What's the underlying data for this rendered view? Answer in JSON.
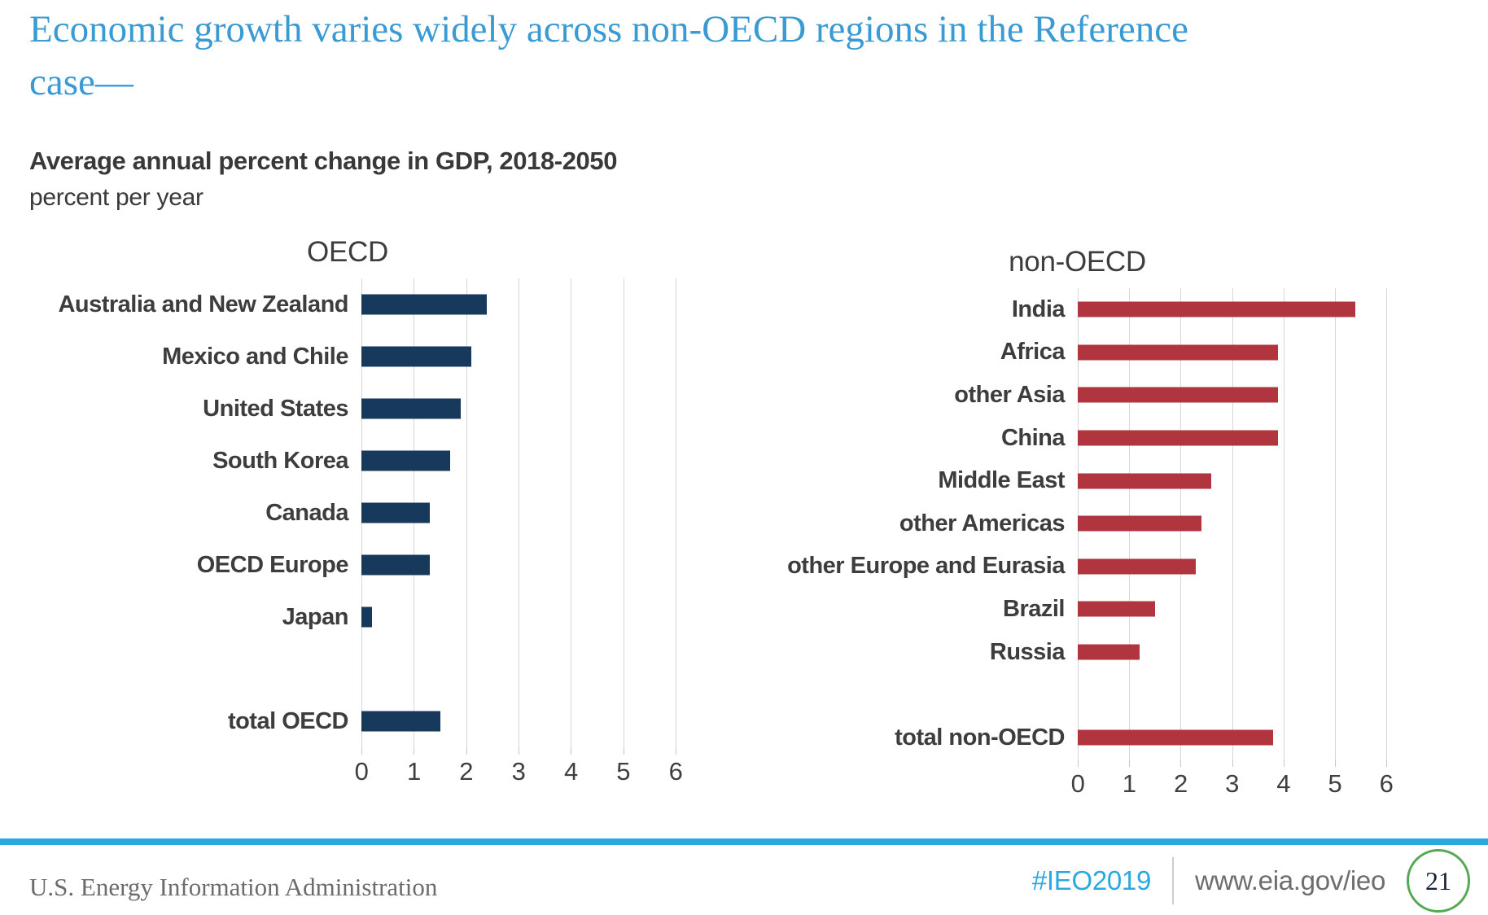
{
  "slide": {
    "title": "Economic growth varies widely across non-OECD regions in the Reference case—",
    "subtitle": "Average annual percent change in GDP, 2018-2050",
    "unit_label": "percent per year"
  },
  "chart_data": [
    {
      "type": "bar",
      "orientation": "horizontal",
      "title": "OECD",
      "bar_color": "#17395c",
      "xlim": [
        0,
        6
      ],
      "ticks": [
        0,
        1,
        2,
        3,
        4,
        5,
        6
      ],
      "grid": true,
      "categories": [
        "Australia and New Zealand",
        "Mexico and Chile",
        "United States",
        "South Korea",
        "Canada",
        "OECD Europe",
        "Japan"
      ],
      "values": [
        2.4,
        2.1,
        1.9,
        1.7,
        1.3,
        1.3,
        0.2
      ],
      "total_label": "total OECD",
      "total_value": 1.5
    },
    {
      "type": "bar",
      "orientation": "horizontal",
      "title": "non-OECD",
      "bar_color": "#b0353f",
      "xlim": [
        0,
        6
      ],
      "ticks": [
        0,
        1,
        2,
        3,
        4,
        5,
        6
      ],
      "grid": true,
      "categories": [
        "India",
        "Africa",
        "other Asia",
        "China",
        "Middle East",
        "other Americas",
        "other Europe and Eurasia",
        "Brazil",
        "Russia"
      ],
      "values": [
        5.4,
        3.9,
        3.9,
        3.9,
        2.6,
        2.4,
        2.3,
        1.5,
        1.2
      ],
      "total_label": "total non-OECD",
      "total_value": 3.8
    }
  ],
  "footer": {
    "org": "U.S. Energy Information Administration",
    "hashtag": "#IEO2019",
    "url": "www.eia.gov/ieo",
    "page": "21"
  },
  "colors": {
    "title_blue": "#3a9ad3",
    "accent_blue": "#2aa8e0",
    "oecd_navy": "#17395c",
    "non_oecd_red": "#b0353f",
    "gridline_gray": "#d7d7d7",
    "text_dark": "#3d3d3d",
    "footer_gray": "#6b6b6b",
    "page_circle_green": "#55a954"
  }
}
